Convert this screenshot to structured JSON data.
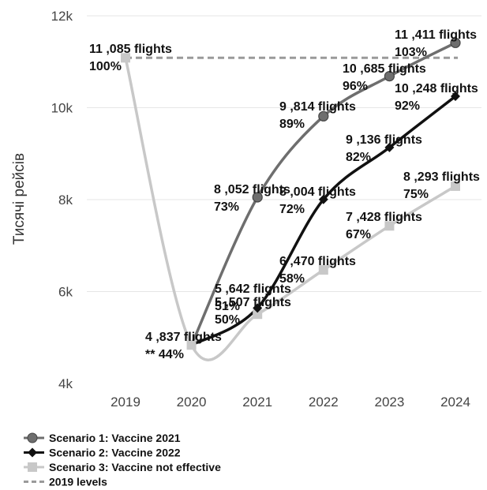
{
  "chart_data": {
    "type": "line",
    "ylabel": "Тисячі рейсів",
    "xlabel": "",
    "x": [
      "2019",
      "2020",
      "2021",
      "2022",
      "2023",
      "2024"
    ],
    "ylim": [
      4000,
      12000
    ],
    "yticks": [
      4000,
      6000,
      8000,
      10000,
      12000
    ],
    "ytick_labels": [
      "4k",
      "6k",
      "8k",
      "10k",
      "12k"
    ],
    "grid": "horizontal",
    "legend_position": "bottom-left",
    "series": [
      {
        "name": "Scenario 1: Vaccine 2021",
        "color": "#6e6e6e",
        "marker": "circle",
        "x": [
          "2020",
          "2021",
          "2022",
          "2023",
          "2024"
        ],
        "values": [
          4837,
          8052,
          9814,
          10685,
          11411
        ],
        "labels": [
          null,
          "8 ,052 flights",
          "9 ,814 flights",
          "10 ,685 flights",
          "11 ,411 flights"
        ],
        "pct": [
          null,
          "73%",
          "89%",
          "96%",
          "103%"
        ]
      },
      {
        "name": "Scenario 2: Vaccine 2022",
        "color": "#111111",
        "marker": "diamond",
        "x": [
          "2020",
          "2021",
          "2022",
          "2023",
          "2024"
        ],
        "values": [
          4837,
          5642,
          8004,
          9136,
          10248
        ],
        "labels": [
          null,
          "5 ,642 flights",
          "8 ,004 flights",
          "9 ,136 flights",
          "10 ,248 flights"
        ],
        "pct": [
          null,
          "51%",
          "72%",
          "82%",
          "92%"
        ]
      },
      {
        "name": "Scenario 3: Vaccine not effective",
        "color": "#c8c8c8",
        "marker": "square",
        "x": [
          "2019",
          "2020",
          "2021",
          "2022",
          "2023",
          "2024"
        ],
        "values": [
          11085,
          4837,
          5507,
          6470,
          7428,
          8293
        ],
        "labels": [
          "11 ,085 flights",
          "4 ,837 flights",
          "5 ,507 flights",
          "6 ,470 flights",
          "7 ,428 flights",
          "8 ,293 flights"
        ],
        "pct": [
          "100%",
          "** 44%",
          "50%",
          "58%",
          "67%",
          "75%"
        ]
      },
      {
        "name": "2019 levels",
        "color": "#9a9a9a",
        "dashed": true,
        "x": [
          "2019",
          "2024"
        ],
        "values": [
          11085,
          11085
        ]
      }
    ]
  }
}
